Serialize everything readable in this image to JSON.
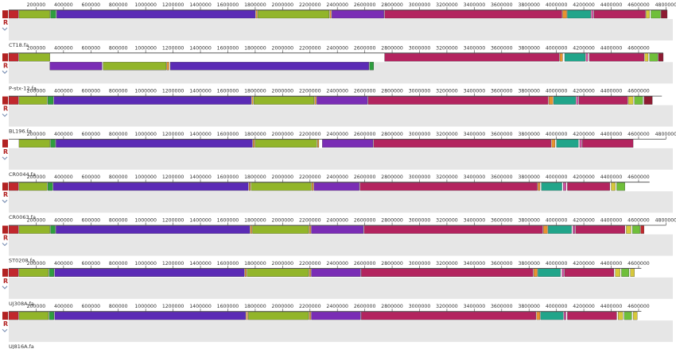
{
  "colors": {
    "band": "#e6e6e6",
    "axis": "#444444",
    "tick_text": "#333333",
    "label_text": "#333333",
    "control_r": "#b22222",
    "control_chevron": "#7a8fb3"
  },
  "genome": {
    "max_bp": 4850000
  },
  "control": {
    "r_label": "R",
    "chevron_icon": "chevron-down-icon"
  },
  "ticks": [
    200000,
    400000,
    600000,
    800000,
    1000000,
    1200000,
    1400000,
    1600000,
    1800000,
    2000000,
    2200000,
    2400000,
    2600000,
    2800000,
    3000000,
    3200000,
    3400000,
    3600000,
    3800000,
    4000000,
    4200000,
    4400000,
    4600000,
    4800000
  ],
  "palette": {
    "red": "#c1272d",
    "green": "#2e9e3e",
    "olive": "#92b52a",
    "purple": "#5b2bb5",
    "violet": "#7a2db5",
    "magenta": "#b3245f",
    "orange": "#e8922f",
    "teal": "#21a58a",
    "pink": "#d14fa0",
    "lime": "#6fbf3a",
    "yellow": "#d6c83a",
    "darkred": "#8e1b32"
  },
  "tracks": [
    {
      "label": "CT18.fa",
      "length_bp": 4809000,
      "upper": [
        {
          "s": 0,
          "e": 70000,
          "c": "red"
        },
        {
          "s": 75000,
          "e": 300000,
          "c": "olive"
        },
        {
          "s": 305000,
          "e": 345000,
          "c": "green"
        },
        {
          "s": 350000,
          "e": 1800000,
          "c": "purple"
        },
        {
          "s": 1805000,
          "e": 1815000,
          "c": "orange"
        },
        {
          "s": 1820000,
          "e": 2340000,
          "c": "olive"
        },
        {
          "s": 2345000,
          "e": 2355000,
          "c": "orange"
        },
        {
          "s": 2360000,
          "e": 2740000,
          "c": "violet"
        },
        {
          "s": 2745000,
          "e": 4040000,
          "c": "magenta"
        },
        {
          "s": 4045000,
          "e": 4075000,
          "c": "orange"
        },
        {
          "s": 4080000,
          "e": 4250000,
          "c": "teal"
        },
        {
          "s": 4255000,
          "e": 4270000,
          "c": "pink"
        },
        {
          "s": 4275000,
          "e": 4650000,
          "c": "magenta"
        },
        {
          "s": 4655000,
          "e": 4680000,
          "c": "yellow"
        },
        {
          "s": 4690000,
          "e": 4760000,
          "c": "lime"
        },
        {
          "s": 4765000,
          "e": 4809000,
          "c": "darkred"
        }
      ],
      "lower": []
    },
    {
      "label": "P-stx-12.fa",
      "length_bp": 4780000,
      "upper": [
        {
          "s": 0,
          "e": 70000,
          "c": "red"
        },
        {
          "s": 75000,
          "e": 300000,
          "c": "olive"
        },
        {
          "s": 2745000,
          "e": 4020000,
          "c": "magenta"
        },
        {
          "s": 4025000,
          "e": 4045000,
          "c": "orange"
        },
        {
          "s": 4060000,
          "e": 4210000,
          "c": "teal"
        },
        {
          "s": 4215000,
          "e": 4230000,
          "c": "pink"
        },
        {
          "s": 4240000,
          "e": 4640000,
          "c": "magenta"
        },
        {
          "s": 4645000,
          "e": 4670000,
          "c": "yellow"
        },
        {
          "s": 4680000,
          "e": 4740000,
          "c": "lime"
        },
        {
          "s": 4745000,
          "e": 4780000,
          "c": "darkred"
        }
      ],
      "lower": [
        {
          "s": 300000,
          "e": 680000,
          "c": "violet"
        },
        {
          "s": 690000,
          "e": 1150000,
          "c": "olive"
        },
        {
          "s": 1155000,
          "e": 1170000,
          "c": "orange"
        },
        {
          "s": 1180000,
          "e": 2630000,
          "c": "purple"
        },
        {
          "s": 2635000,
          "e": 2665000,
          "c": "green"
        }
      ]
    },
    {
      "label": "BL196.fa",
      "length_bp": 4770000,
      "upper": [
        {
          "s": 0,
          "e": 70000,
          "c": "red"
        },
        {
          "s": 75000,
          "e": 280000,
          "c": "olive"
        },
        {
          "s": 285000,
          "e": 325000,
          "c": "green"
        },
        {
          "s": 330000,
          "e": 1770000,
          "c": "purple"
        },
        {
          "s": 1775000,
          "e": 1785000,
          "c": "orange"
        },
        {
          "s": 1790000,
          "e": 2230000,
          "c": "olive"
        },
        {
          "s": 2235000,
          "e": 2245000,
          "c": "orange"
        },
        {
          "s": 2250000,
          "e": 2620000,
          "c": "violet"
        },
        {
          "s": 2625000,
          "e": 3940000,
          "c": "magenta"
        },
        {
          "s": 3945000,
          "e": 3975000,
          "c": "orange"
        },
        {
          "s": 3980000,
          "e": 4140000,
          "c": "teal"
        },
        {
          "s": 4145000,
          "e": 4160000,
          "c": "pink"
        },
        {
          "s": 4165000,
          "e": 4520000,
          "c": "magenta"
        },
        {
          "s": 4525000,
          "e": 4560000,
          "c": "yellow"
        },
        {
          "s": 4570000,
          "e": 4630000,
          "c": "lime"
        },
        {
          "s": 4640000,
          "e": 4700000,
          "c": "darkred"
        }
      ],
      "lower": []
    },
    {
      "label": "CR0044.fa",
      "length_bp": 4800000,
      "upper": [
        {
          "s": 75000,
          "e": 300000,
          "c": "olive"
        },
        {
          "s": 305000,
          "e": 340000,
          "c": "green"
        },
        {
          "s": 345000,
          "e": 1780000,
          "c": "purple"
        },
        {
          "s": 1785000,
          "e": 1795000,
          "c": "orange"
        },
        {
          "s": 1800000,
          "e": 2250000,
          "c": "olive"
        },
        {
          "s": 2255000,
          "e": 2265000,
          "c": "orange"
        },
        {
          "s": 2290000,
          "e": 2660000,
          "c": "violet"
        },
        {
          "s": 2665000,
          "e": 3960000,
          "c": "magenta"
        },
        {
          "s": 3965000,
          "e": 3990000,
          "c": "orange"
        },
        {
          "s": 4000000,
          "e": 4160000,
          "c": "teal"
        },
        {
          "s": 4170000,
          "e": 4185000,
          "c": "pink"
        },
        {
          "s": 4190000,
          "e": 4560000,
          "c": "magenta"
        }
      ],
      "lower": []
    },
    {
      "label": "CR0063.fa",
      "length_bp": 4680000,
      "upper": [
        {
          "s": 0,
          "e": 70000,
          "c": "red"
        },
        {
          "s": 75000,
          "e": 280000,
          "c": "olive"
        },
        {
          "s": 285000,
          "e": 320000,
          "c": "green"
        },
        {
          "s": 325000,
          "e": 1750000,
          "c": "purple"
        },
        {
          "s": 1755000,
          "e": 1765000,
          "c": "orange"
        },
        {
          "s": 1770000,
          "e": 2210000,
          "c": "olive"
        },
        {
          "s": 2215000,
          "e": 2225000,
          "c": "orange"
        },
        {
          "s": 2230000,
          "e": 2560000,
          "c": "violet"
        },
        {
          "s": 2565000,
          "e": 3860000,
          "c": "magenta"
        },
        {
          "s": 3865000,
          "e": 3880000,
          "c": "orange"
        },
        {
          "s": 3890000,
          "e": 4040000,
          "c": "teal"
        },
        {
          "s": 4050000,
          "e": 4070000,
          "c": "pink"
        },
        {
          "s": 4080000,
          "e": 4390000,
          "c": "magenta"
        },
        {
          "s": 4400000,
          "e": 4430000,
          "c": "yellow"
        },
        {
          "s": 4440000,
          "e": 4500000,
          "c": "lime"
        }
      ],
      "lower": []
    },
    {
      "label": "ST0208.fa",
      "length_bp": 4800000,
      "upper": [
        {
          "s": 0,
          "e": 70000,
          "c": "red"
        },
        {
          "s": 75000,
          "e": 300000,
          "c": "olive"
        },
        {
          "s": 305000,
          "e": 340000,
          "c": "green"
        },
        {
          "s": 345000,
          "e": 1760000,
          "c": "purple"
        },
        {
          "s": 1765000,
          "e": 1775000,
          "c": "orange"
        },
        {
          "s": 1780000,
          "e": 2190000,
          "c": "olive"
        },
        {
          "s": 2195000,
          "e": 2205000,
          "c": "orange"
        },
        {
          "s": 2210000,
          "e": 2590000,
          "c": "violet"
        },
        {
          "s": 2595000,
          "e": 3900000,
          "c": "magenta"
        },
        {
          "s": 3905000,
          "e": 3935000,
          "c": "orange"
        },
        {
          "s": 3940000,
          "e": 4110000,
          "c": "teal"
        },
        {
          "s": 4120000,
          "e": 4135000,
          "c": "pink"
        },
        {
          "s": 4140000,
          "e": 4500000,
          "c": "magenta"
        },
        {
          "s": 4510000,
          "e": 4545000,
          "c": "yellow"
        },
        {
          "s": 4555000,
          "e": 4610000,
          "c": "lime"
        },
        {
          "s": 4615000,
          "e": 4640000,
          "c": "red"
        }
      ],
      "lower": []
    },
    {
      "label": "UJ308A.fa",
      "length_bp": 4620000,
      "upper": [
        {
          "s": 0,
          "e": 70000,
          "c": "red"
        },
        {
          "s": 75000,
          "e": 290000,
          "c": "olive"
        },
        {
          "s": 295000,
          "e": 330000,
          "c": "green"
        },
        {
          "s": 335000,
          "e": 1720000,
          "c": "purple"
        },
        {
          "s": 1725000,
          "e": 1735000,
          "c": "orange"
        },
        {
          "s": 1740000,
          "e": 2190000,
          "c": "olive"
        },
        {
          "s": 2195000,
          "e": 2205000,
          "c": "orange"
        },
        {
          "s": 2210000,
          "e": 2570000,
          "c": "violet"
        },
        {
          "s": 2575000,
          "e": 3830000,
          "c": "magenta"
        },
        {
          "s": 3835000,
          "e": 3860000,
          "c": "orange"
        },
        {
          "s": 3865000,
          "e": 4030000,
          "c": "teal"
        },
        {
          "s": 4040000,
          "e": 4055000,
          "c": "pink"
        },
        {
          "s": 4060000,
          "e": 4420000,
          "c": "magenta"
        },
        {
          "s": 4430000,
          "e": 4465000,
          "c": "yellow"
        },
        {
          "s": 4475000,
          "e": 4530000,
          "c": "lime"
        },
        {
          "s": 4540000,
          "e": 4570000,
          "c": "yellow"
        }
      ],
      "lower": []
    },
    {
      "label": "UJ816A.fa",
      "length_bp": 4620000,
      "upper": [
        {
          "s": 0,
          "e": 70000,
          "c": "red"
        },
        {
          "s": 75000,
          "e": 290000,
          "c": "olive"
        },
        {
          "s": 295000,
          "e": 330000,
          "c": "green"
        },
        {
          "s": 335000,
          "e": 1730000,
          "c": "purple"
        },
        {
          "s": 1735000,
          "e": 1745000,
          "c": "orange"
        },
        {
          "s": 1750000,
          "e": 2190000,
          "c": "olive"
        },
        {
          "s": 2195000,
          "e": 2205000,
          "c": "orange"
        },
        {
          "s": 2210000,
          "e": 2570000,
          "c": "violet"
        },
        {
          "s": 2575000,
          "e": 3850000,
          "c": "magenta"
        },
        {
          "s": 3855000,
          "e": 3880000,
          "c": "orange"
        },
        {
          "s": 3885000,
          "e": 4050000,
          "c": "teal"
        },
        {
          "s": 4055000,
          "e": 4070000,
          "c": "pink"
        },
        {
          "s": 4080000,
          "e": 4440000,
          "c": "magenta"
        },
        {
          "s": 4450000,
          "e": 4485000,
          "c": "yellow"
        },
        {
          "s": 4495000,
          "e": 4550000,
          "c": "lime"
        },
        {
          "s": 4560000,
          "e": 4590000,
          "c": "yellow"
        }
      ],
      "lower": []
    }
  ]
}
